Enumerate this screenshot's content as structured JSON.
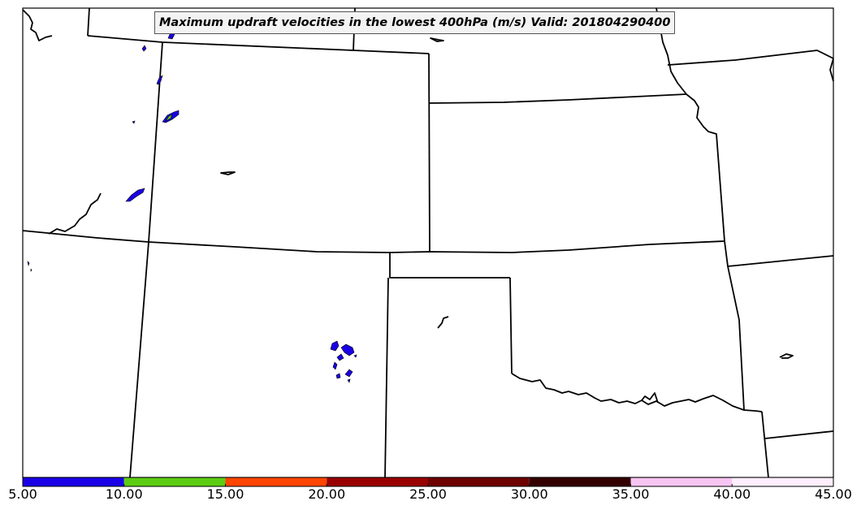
{
  "title": "Maximum updraft velocities in the lowest 400hPa (m/s) Valid: 201804290400",
  "colorbar": {
    "segments": [
      {
        "from": 5,
        "to": 10,
        "color": "#1a00e6"
      },
      {
        "from": 10,
        "to": 15,
        "color": "#5ccd12"
      },
      {
        "from": 15,
        "to": 20,
        "color": "#ff4500"
      },
      {
        "from": 20,
        "to": 25,
        "color": "#990000"
      },
      {
        "from": 25,
        "to": 30,
        "color": "#6e0000"
      },
      {
        "from": 30,
        "to": 35,
        "color": "#330000"
      },
      {
        "from": 35,
        "to": 40,
        "color": "#f7c5f2"
      },
      {
        "from": 40,
        "to": 45,
        "color": "#ffeefe"
      }
    ],
    "ticks": [
      {
        "value": 5,
        "label": "5.00"
      },
      {
        "value": 10,
        "label": "10.00"
      },
      {
        "value": 15,
        "label": "15.00"
      },
      {
        "value": 20,
        "label": "20.00"
      },
      {
        "value": 25,
        "label": "25.00"
      },
      {
        "value": 30,
        "label": "30.00"
      },
      {
        "value": 35,
        "label": "35.00"
      },
      {
        "value": 40,
        "label": "40.00"
      },
      {
        "value": 45,
        "label": "45.00"
      }
    ]
  },
  "colors": {
    "updraft_5_10": "#1a00e6",
    "updraft_10_15": "#5ccd12",
    "boundary": "#000000"
  }
}
